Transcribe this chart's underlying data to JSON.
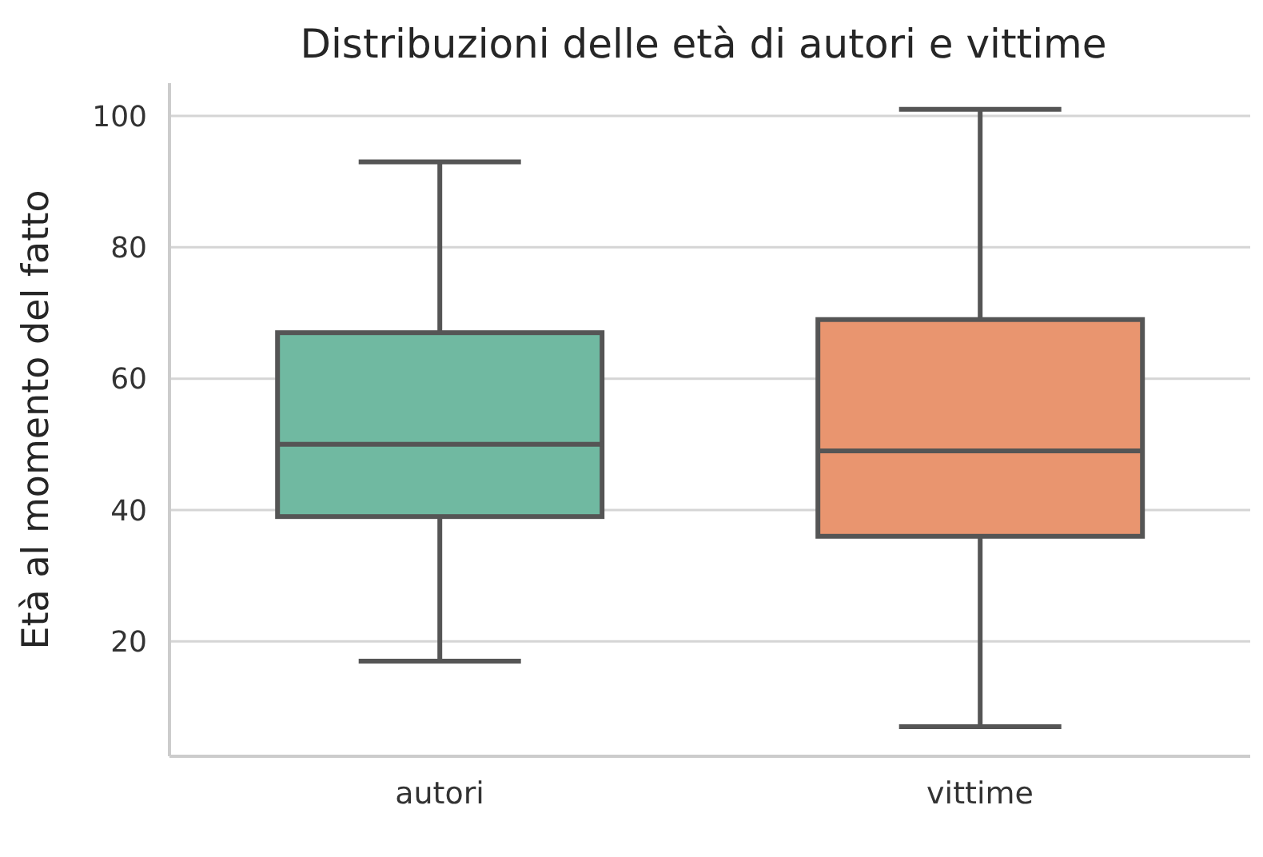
{
  "chart_data": {
    "type": "box",
    "title": "Distribuzioni delle età di autori e vittime",
    "ylabel": "Età al momento del fatto",
    "categories": [
      "autori",
      "vittime"
    ],
    "boxes": [
      {
        "low": 17,
        "q1": 39,
        "median": 50,
        "q3": 67,
        "high": 93
      },
      {
        "low": 7,
        "q1": 36,
        "median": 49,
        "q3": 69,
        "high": 101
      }
    ],
    "colors": [
      "#70b9a1",
      "#e9956f"
    ],
    "ylim": [
      2.5,
      105
    ],
    "yticks": [
      20,
      40,
      60,
      80,
      100
    ],
    "grid": "y",
    "legend": false
  }
}
